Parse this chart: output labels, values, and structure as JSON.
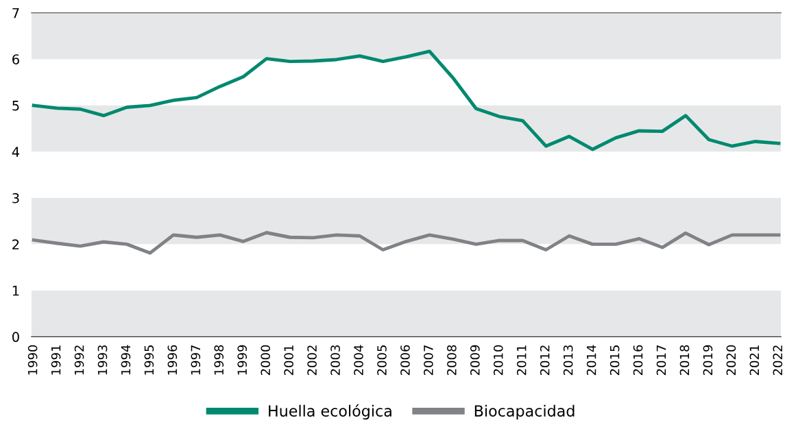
{
  "chart_data": {
    "type": "line",
    "categories": [
      "1990",
      "1991",
      "1992",
      "1993",
      "1994",
      "1995",
      "1996",
      "1997",
      "1998",
      "1999",
      "2000",
      "2001",
      "2002",
      "2003",
      "2004",
      "2005",
      "2006",
      "2007",
      "2008",
      "2009",
      "2010",
      "2011",
      "2012",
      "2013",
      "2014",
      "2015",
      "2016",
      "2017",
      "2018",
      "2019",
      "2020",
      "2021",
      "2022"
    ],
    "series": [
      {
        "name": "Huella ecológica",
        "color": "#00896f",
        "values": [
          5.0,
          4.94,
          4.92,
          4.78,
          4.96,
          5.0,
          5.11,
          5.17,
          5.41,
          5.62,
          6.01,
          5.95,
          5.96,
          5.99,
          6.07,
          5.95,
          6.05,
          6.17,
          5.6,
          4.93,
          4.76,
          4.67,
          4.12,
          4.33,
          4.05,
          4.3,
          4.45,
          4.44,
          4.78,
          4.26,
          4.12,
          4.22,
          4.18
        ]
      },
      {
        "name": "Biocapacidad",
        "color": "#808285",
        "values": [
          2.09,
          2.02,
          1.96,
          2.05,
          2.0,
          1.81,
          2.2,
          2.15,
          2.2,
          2.06,
          2.25,
          2.15,
          2.14,
          2.2,
          2.18,
          1.88,
          2.06,
          2.2,
          2.11,
          2.0,
          2.08,
          2.08,
          1.88,
          2.18,
          2.0,
          2.0,
          2.12,
          1.93,
          2.24,
          1.99,
          2.2,
          2.2,
          2.2
        ]
      }
    ],
    "ylim": [
      0,
      7
    ],
    "yticks": [
      0,
      1,
      2,
      3,
      4,
      5,
      6,
      7
    ],
    "bands": [
      {
        "axis": "y",
        "from": 0,
        "to": 1,
        "color": "#e6e7e8"
      },
      {
        "axis": "y",
        "from": 2,
        "to": 3,
        "color": "#e6e7e8"
      },
      {
        "axis": "y",
        "from": 4,
        "to": 5,
        "color": "#e6e7e8"
      },
      {
        "axis": "y",
        "from": 6,
        "to": 7,
        "color": "#e6e7e8"
      }
    ],
    "grid": false,
    "legend": "bottom",
    "marker": "none",
    "line_style": "solid"
  }
}
